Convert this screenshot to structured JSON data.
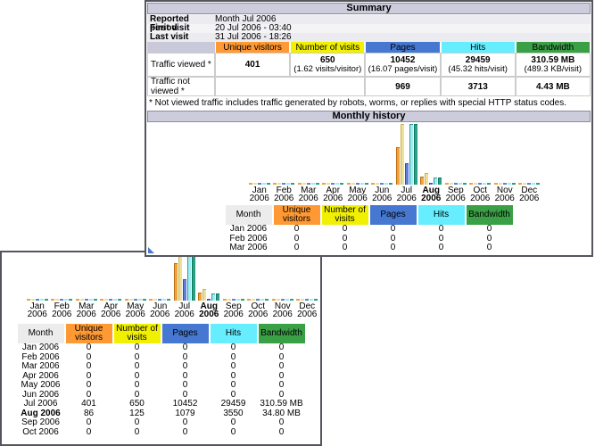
{
  "back_window": {
    "summary": {
      "title": "Summary",
      "info_rows": [
        {
          "label": "Reported period",
          "value": "Month Jul 2006"
        },
        {
          "label": "First visit",
          "value": "20 Jul 2006 - 03:40"
        },
        {
          "label": "Last visit",
          "value": "31 Jul 2006 - 18:26"
        }
      ],
      "columns": [
        "Unique visitors",
        "Number of visits",
        "Pages",
        "Hits",
        "Bandwidth"
      ],
      "traffic_viewed": {
        "label": "Traffic viewed *",
        "cells": [
          {
            "main": "401",
            "sub": ""
          },
          {
            "main": "650",
            "sub": "(1.62 visits/visitor)"
          },
          {
            "main": "10452",
            "sub": "(16.07 pages/visit)"
          },
          {
            "main": "29459",
            "sub": "(45.32 hits/visit)"
          },
          {
            "main": "310.59 MB",
            "sub": "(489.3 KB/visit)"
          }
        ]
      },
      "traffic_not_viewed": {
        "label": "Traffic not viewed *",
        "values": [
          "969",
          "3713",
          "4.43 MB"
        ]
      },
      "note": "* Not viewed traffic includes traffic generated by robots, worms, or replies with special HTTP status codes."
    },
    "monthly_history_title": "Monthly history"
  },
  "chart_data": {
    "type": "bar",
    "title": "Monthly history",
    "x": [
      "Jan 2006",
      "Feb 2006",
      "Mar 2006",
      "Apr 2006",
      "May 2006",
      "Jun 2006",
      "Jul 2006",
      "Aug 2006",
      "Sep 2006",
      "Oct 2006",
      "Nov 2006",
      "Dec 2006"
    ],
    "bold_category": "Aug 2006",
    "series": [
      {
        "name": "Unique visitors",
        "values": [
          0,
          0,
          0,
          0,
          0,
          0,
          401,
          86,
          0,
          0,
          0,
          0
        ]
      },
      {
        "name": "Number of visits",
        "values": [
          0,
          0,
          0,
          0,
          0,
          0,
          650,
          125,
          0,
          0,
          0,
          0
        ]
      },
      {
        "name": "Pages",
        "values": [
          0,
          0,
          0,
          0,
          0,
          0,
          10452,
          1079,
          0,
          0,
          0,
          0
        ]
      },
      {
        "name": "Hits",
        "values": [
          0,
          0,
          0,
          0,
          0,
          0,
          29459,
          3550,
          0,
          0,
          0,
          0
        ]
      },
      {
        "name": "Bandwidth (MB)",
        "values": [
          0,
          0,
          0,
          0,
          0,
          0,
          310.59,
          34.8,
          0,
          0,
          0,
          0
        ]
      }
    ],
    "scale_groups": [
      [
        "Unique visitors",
        "Number of visits"
      ],
      [
        "Pages",
        "Hits"
      ],
      [
        "Bandwidth (MB)"
      ]
    ],
    "legend_position": "none",
    "grid": false
  },
  "monthly_table": {
    "headers": [
      "Month",
      "Unique visitors",
      "Number of visits",
      "Pages",
      "Hits",
      "Bandwidth"
    ],
    "rows": [
      {
        "month": "Jan 2006",
        "values": [
          "0",
          "0",
          "0",
          "0",
          "0"
        ],
        "bold": false
      },
      {
        "month": "Feb 2006",
        "values": [
          "0",
          "0",
          "0",
          "0",
          "0"
        ],
        "bold": false
      },
      {
        "month": "Mar 2006",
        "values": [
          "0",
          "0",
          "0",
          "0",
          "0"
        ],
        "bold": false
      },
      {
        "month": "Apr 2006",
        "values": [
          "0",
          "0",
          "0",
          "0",
          "0"
        ],
        "bold": false
      },
      {
        "month": "May 2006",
        "values": [
          "0",
          "0",
          "0",
          "0",
          "0"
        ],
        "bold": false
      },
      {
        "month": "Jun 2006",
        "values": [
          "0",
          "0",
          "0",
          "0",
          "0"
        ],
        "bold": false
      },
      {
        "month": "Jul 2006",
        "values": [
          "401",
          "650",
          "10452",
          "29459",
          "310.59 MB"
        ],
        "bold": false
      },
      {
        "month": "Aug 2006",
        "values": [
          "86",
          "125",
          "1079",
          "3550",
          "34.80 MB"
        ],
        "bold": true
      },
      {
        "month": "Sep 2006",
        "values": [
          "0",
          "0",
          "0",
          "0",
          "0"
        ],
        "bold": false
      },
      {
        "month": "Oct 2006",
        "values": [
          "0",
          "0",
          "0",
          "0",
          "0"
        ],
        "bold": false
      }
    ]
  },
  "colors": {
    "title_bar_bg": "#CCCCDD",
    "month_header_bg": "#ECECEC",
    "header_colors": [
      "#FF9933",
      "#F0F000",
      "#4678D2",
      "#66EEFF",
      "#3AA045"
    ],
    "bar_colors": [
      {
        "fill": "#F0A23C",
        "border": "#BE6E14"
      },
      {
        "fill": "#EEE094",
        "border": "#C8B458"
      },
      {
        "fill": "#5C80DC",
        "border": "#2A52B4"
      },
      {
        "fill": "#A0ECF0",
        "border": "#37969E"
      },
      {
        "fill": "#28A186",
        "border": "#0E7A5E"
      }
    ],
    "resize_grip": "#4A7AC8"
  }
}
